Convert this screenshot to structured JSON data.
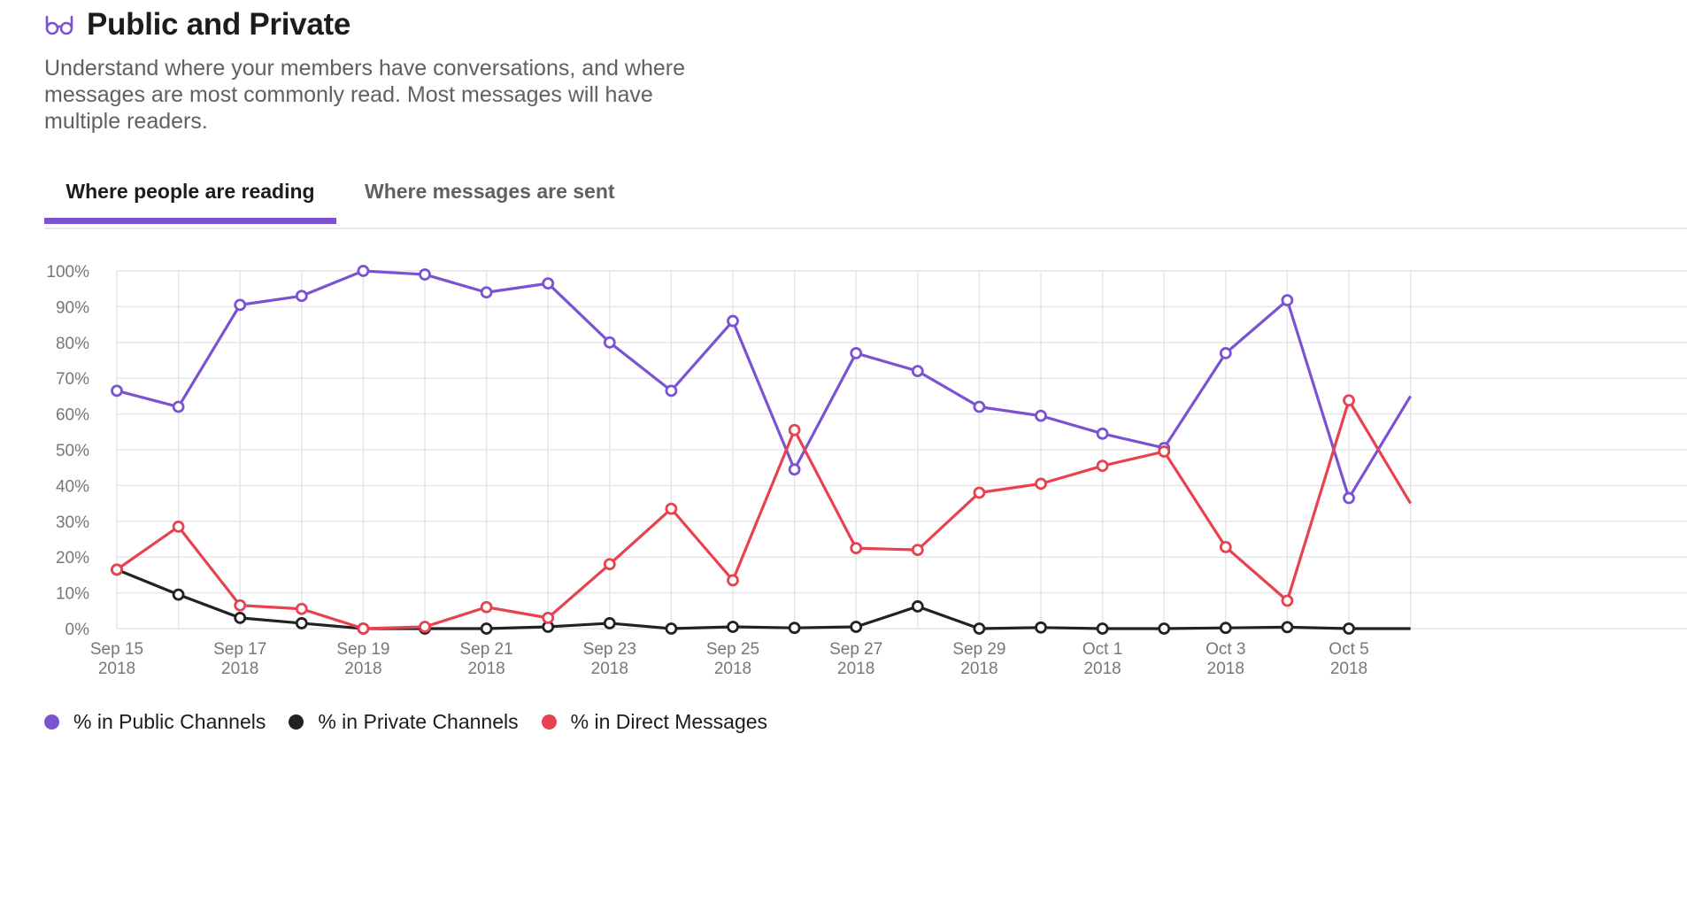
{
  "header": {
    "title": "Public and Private",
    "icon": "glasses-icon",
    "description": "Understand where your members have conversations, and where messages are most commonly read. Most messages will have multiple readers."
  },
  "tabs": [
    {
      "label": "Where people are reading",
      "active": true
    },
    {
      "label": "Where messages are sent",
      "active": false
    }
  ],
  "colors": {
    "accent": "#7b52d0",
    "public": "#7b52d0",
    "private": "#222222",
    "direct": "#e8414f",
    "grid": "#e6e6e6"
  },
  "chart_data": {
    "type": "line",
    "x": [
      "Sep 15 2018",
      "Sep 16 2018",
      "Sep 17 2018",
      "Sep 18 2018",
      "Sep 19 2018",
      "Sep 20 2018",
      "Sep 21 2018",
      "Sep 22 2018",
      "Sep 23 2018",
      "Sep 24 2018",
      "Sep 25 2018",
      "Sep 26 2018",
      "Sep 27 2018",
      "Sep 28 2018",
      "Sep 29 2018",
      "Sep 30 2018",
      "Oct 1 2018",
      "Oct 2 2018",
      "Oct 3 2018",
      "Oct 4 2018",
      "Oct 5 2018",
      "Oct 6 2018"
    ],
    "tick_labels": [
      {
        "line1": "Sep 15",
        "line2": "2018",
        "index": 0
      },
      {
        "line1": "Sep 17",
        "line2": "2018",
        "index": 2
      },
      {
        "line1": "Sep 19",
        "line2": "2018",
        "index": 4
      },
      {
        "line1": "Sep 21",
        "line2": "2018",
        "index": 6
      },
      {
        "line1": "Sep 23",
        "line2": "2018",
        "index": 8
      },
      {
        "line1": "Sep 25",
        "line2": "2018",
        "index": 10
      },
      {
        "line1": "Sep 27",
        "line2": "2018",
        "index": 12
      },
      {
        "line1": "Sep 29",
        "line2": "2018",
        "index": 14
      },
      {
        "line1": "Oct 1",
        "line2": "2018",
        "index": 16
      },
      {
        "line1": "Oct 3",
        "line2": "2018",
        "index": 18
      },
      {
        "line1": "Oct 5",
        "line2": "2018",
        "index": 20
      }
    ],
    "y_ticks": [
      "0%",
      "10%",
      "20%",
      "30%",
      "40%",
      "50%",
      "60%",
      "70%",
      "80%",
      "90%",
      "100%"
    ],
    "ylim": [
      0,
      100
    ],
    "grid": true,
    "legend_position": "bottom-left",
    "series": [
      {
        "name": "% in Public Channels",
        "color": "#7b52d0",
        "values": [
          66.5,
          62,
          90.5,
          93,
          100,
          99,
          94,
          96.5,
          80,
          66.5,
          86,
          44.5,
          77,
          72,
          62,
          59.5,
          54.5,
          50.5,
          77,
          91.8,
          36.5,
          65
        ]
      },
      {
        "name": "% in Private Channels",
        "color": "#222222",
        "values": [
          16.5,
          9.5,
          3,
          1.5,
          0,
          0,
          0,
          0.5,
          1.5,
          0,
          0.5,
          0.2,
          0.5,
          6.2,
          0,
          0.3,
          0,
          0,
          0.2,
          0.4,
          0,
          0
        ]
      },
      {
        "name": "% in Direct Messages",
        "color": "#e8414f",
        "values": [
          16.5,
          28.5,
          6.5,
          5.5,
          0,
          0.5,
          6,
          3,
          18,
          33.5,
          13.5,
          55.5,
          22.5,
          22,
          38,
          40.5,
          45.5,
          49.5,
          22.8,
          7.8,
          63.8,
          35
        ]
      }
    ]
  }
}
